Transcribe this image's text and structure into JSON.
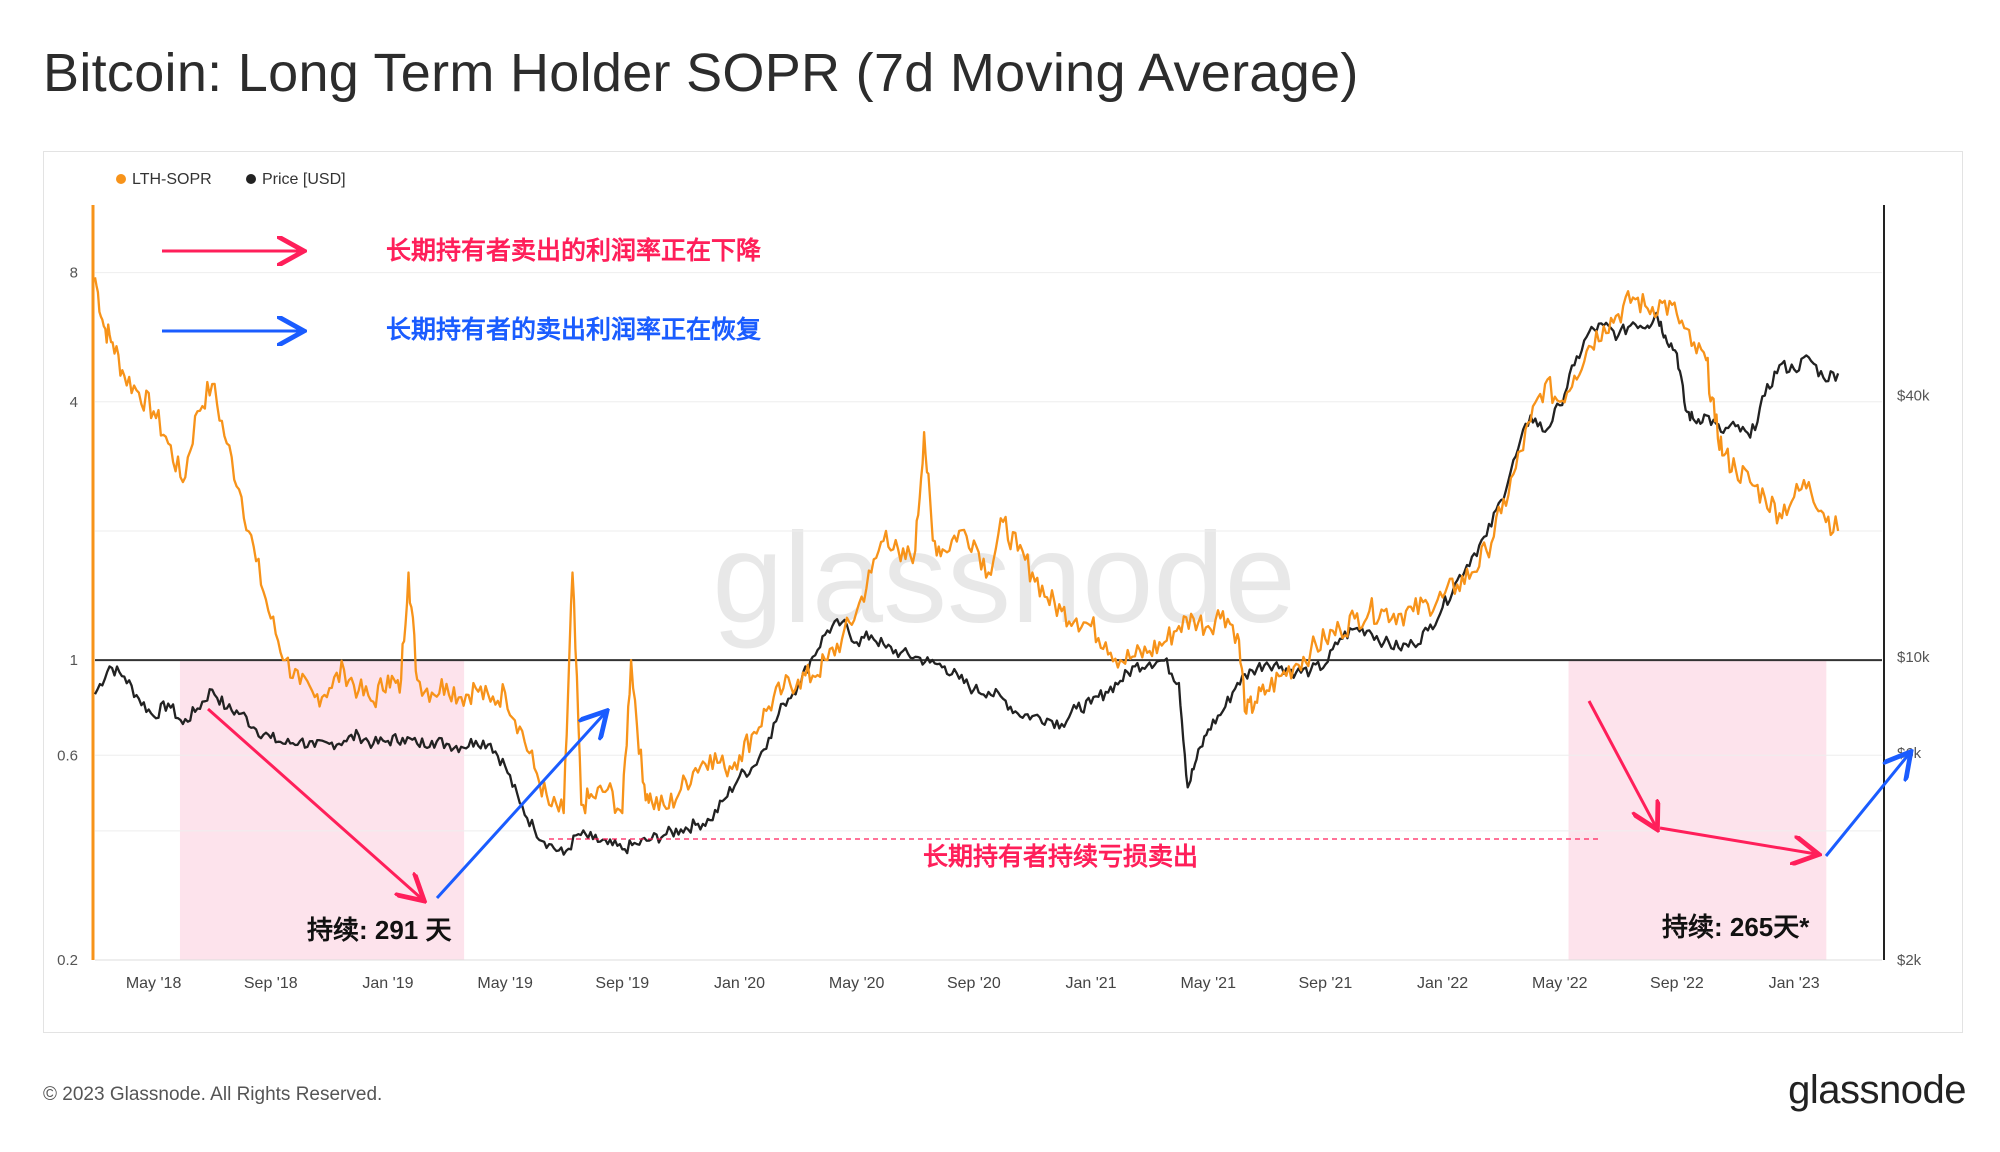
{
  "page": {
    "title": "Bitcoin: Long Term Holder SOPR (7d Moving Average)",
    "footer": "© 2023 Glassnode. All Rights Reserved.",
    "brand": "glassnode",
    "watermark": "glassnode"
  },
  "chart_data": {
    "type": "line",
    "title": "Bitcoin: Long Term Holder SOPR (7d Moving Average)",
    "legend": {
      "position": "top-left",
      "entries": [
        {
          "name": "LTH-SOPR",
          "color": "#f7931a"
        },
        {
          "name": "Price [USD]",
          "color": "#222222"
        }
      ]
    },
    "x_ticks": [
      "May '18",
      "Sep '18",
      "Jan '19",
      "May '19",
      "Sep '19",
      "Jan '20",
      "May '20",
      "Sep '20",
      "Jan '21",
      "May '21",
      "Sep '21",
      "Jan '22",
      "May '22",
      "Sep '22",
      "Jan '23"
    ],
    "x_range": [
      0,
      61
    ],
    "x_unit": "months since Mar 2018",
    "y_left": {
      "label": "LTH-SOPR",
      "scale": "log",
      "range": [
        0.2,
        11.5
      ],
      "ticks": [
        "8",
        "4",
        "1",
        "0.6",
        "0.2"
      ]
    },
    "y_right": {
      "label": "Price [USD]",
      "scale": "log",
      "range": [
        2000,
        110000
      ],
      "ticks": [
        "$40k",
        "$10k",
        "$6k",
        "$2k"
      ]
    },
    "reference_line": {
      "axis": "left",
      "value": 1
    },
    "series": [
      {
        "name": "LTH-SOPR",
        "axis": "left",
        "color": "#f7931a",
        "points": [
          [
            0,
            7.8
          ],
          [
            0.3,
            6.0
          ],
          [
            0.6,
            5.5
          ],
          [
            1.0,
            4.6
          ],
          [
            1.5,
            4.2
          ],
          [
            2.0,
            3.8
          ],
          [
            2.5,
            3.2
          ],
          [
            3.0,
            2.6
          ],
          [
            3.5,
            3.8
          ],
          [
            4.0,
            4.4
          ],
          [
            4.5,
            3.2
          ],
          [
            5.0,
            2.4
          ],
          [
            5.5,
            1.7
          ],
          [
            6.0,
            1.25
          ],
          [
            6.5,
            1.0
          ],
          [
            7.0,
            0.88
          ],
          [
            7.5,
            0.82
          ],
          [
            8.0,
            0.86
          ],
          [
            8.5,
            0.95
          ],
          [
            9.0,
            0.85
          ],
          [
            9.5,
            0.8
          ],
          [
            10.0,
            0.92
          ],
          [
            10.4,
            0.84
          ],
          [
            10.7,
            1.6
          ],
          [
            11.0,
            0.9
          ],
          [
            11.5,
            0.84
          ],
          [
            12.0,
            0.88
          ],
          [
            12.5,
            0.82
          ],
          [
            13.0,
            0.86
          ],
          [
            13.5,
            0.8
          ],
          [
            14.0,
            0.84
          ],
          [
            14.5,
            0.7
          ],
          [
            15.0,
            0.56
          ],
          [
            15.5,
            0.46
          ],
          [
            16.0,
            0.44
          ],
          [
            16.3,
            1.6
          ],
          [
            16.6,
            0.46
          ],
          [
            17.0,
            0.48
          ],
          [
            17.5,
            0.5
          ],
          [
            18.0,
            0.44
          ],
          [
            18.3,
            1.0
          ],
          [
            18.7,
            0.52
          ],
          [
            19.0,
            0.47
          ],
          [
            19.5,
            0.45
          ],
          [
            20.0,
            0.5
          ],
          [
            20.5,
            0.56
          ],
          [
            21.0,
            0.6
          ],
          [
            21.5,
            0.56
          ],
          [
            22.0,
            0.6
          ],
          [
            22.5,
            0.68
          ],
          [
            23.0,
            0.78
          ],
          [
            23.5,
            0.86
          ],
          [
            24.0,
            0.9
          ],
          [
            24.5,
            0.92
          ],
          [
            25.0,
            1.0
          ],
          [
            25.5,
            1.12
          ],
          [
            26.0,
            1.3
          ],
          [
            26.5,
            1.6
          ],
          [
            27.0,
            2.0
          ],
          [
            27.5,
            1.7
          ],
          [
            28.0,
            1.8
          ],
          [
            28.3,
            3.4
          ],
          [
            28.6,
            1.9
          ],
          [
            29.0,
            1.8
          ],
          [
            29.5,
            2.0
          ],
          [
            30.0,
            1.9
          ],
          [
            30.5,
            1.6
          ],
          [
            31.0,
            2.1
          ],
          [
            31.5,
            1.8
          ],
          [
            32.0,
            1.6
          ],
          [
            32.5,
            1.4
          ],
          [
            33.0,
            1.3
          ],
          [
            33.5,
            1.25
          ],
          [
            34.0,
            1.2
          ],
          [
            34.5,
            1.1
          ],
          [
            35.0,
            1.0
          ],
          [
            35.5,
            1.02
          ],
          [
            36.0,
            1.05
          ],
          [
            36.5,
            1.1
          ],
          [
            37.0,
            1.2
          ],
          [
            37.5,
            1.25
          ],
          [
            38.0,
            1.2
          ],
          [
            38.5,
            1.3
          ],
          [
            39.0,
            1.15
          ],
          [
            39.3,
            0.75
          ],
          [
            39.6,
            0.8
          ],
          [
            40.0,
            0.85
          ],
          [
            40.5,
            0.92
          ],
          [
            41.0,
            0.98
          ],
          [
            41.5,
            1.05
          ],
          [
            42.0,
            1.12
          ],
          [
            42.5,
            1.18
          ],
          [
            43.0,
            1.25
          ],
          [
            43.5,
            1.3
          ],
          [
            44.0,
            1.3
          ],
          [
            44.5,
            1.28
          ],
          [
            45.0,
            1.3
          ],
          [
            45.5,
            1.35
          ],
          [
            46.0,
            1.4
          ],
          [
            46.5,
            1.5
          ],
          [
            47.0,
            1.6
          ],
          [
            47.5,
            1.8
          ],
          [
            48.0,
            2.2
          ],
          [
            48.5,
            2.8
          ],
          [
            49.0,
            3.6
          ],
          [
            49.5,
            4.4
          ],
          [
            50.0,
            4.0
          ],
          [
            50.5,
            4.6
          ],
          [
            51.0,
            5.4
          ],
          [
            51.5,
            6.0
          ],
          [
            52.0,
            6.4
          ],
          [
            52.5,
            7.0
          ],
          [
            53.0,
            6.6
          ],
          [
            53.5,
            6.8
          ],
          [
            54.0,
            6.4
          ],
          [
            54.5,
            5.4
          ],
          [
            55.0,
            5.0
          ],
          [
            55.3,
            3.6
          ],
          [
            55.6,
            3.0
          ],
          [
            56.0,
            2.8
          ],
          [
            56.5,
            2.6
          ],
          [
            57.0,
            2.4
          ],
          [
            57.5,
            2.2
          ],
          [
            58.0,
            2.4
          ],
          [
            58.5,
            2.6
          ],
          [
            59.0,
            2.2
          ],
          [
            59.5,
            2.0
          ]
        ]
      },
      {
        "name": "Price [USD]",
        "axis": "right",
        "color": "#222222",
        "points": [
          [
            0,
            8200
          ],
          [
            0.5,
            9500
          ],
          [
            1.0,
            9000
          ],
          [
            1.5,
            8000
          ],
          [
            2.0,
            7300
          ],
          [
            2.5,
            7800
          ],
          [
            3.0,
            7000
          ],
          [
            3.5,
            7600
          ],
          [
            4.0,
            8400
          ],
          [
            4.5,
            7600
          ],
          [
            5.0,
            7400
          ],
          [
            5.5,
            6800
          ],
          [
            6.0,
            6500
          ],
          [
            6.5,
            6300
          ],
          [
            7.0,
            6400
          ],
          [
            7.5,
            6200
          ],
          [
            8.0,
            6300
          ],
          [
            8.5,
            6400
          ],
          [
            9.0,
            6600
          ],
          [
            9.5,
            6300
          ],
          [
            10.0,
            6400
          ],
          [
            10.5,
            6500
          ],
          [
            11.0,
            6300
          ],
          [
            11.5,
            6400
          ],
          [
            12.0,
            6300
          ],
          [
            12.5,
            6200
          ],
          [
            13.0,
            6400
          ],
          [
            13.5,
            6300
          ],
          [
            14.0,
            5600
          ],
          [
            14.5,
            4600
          ],
          [
            15.0,
            4000
          ],
          [
            15.5,
            3700
          ],
          [
            16.0,
            3500
          ],
          [
            16.5,
            3900
          ],
          [
            17.0,
            3800
          ],
          [
            17.5,
            3700
          ],
          [
            18.0,
            3600
          ],
          [
            18.5,
            3700
          ],
          [
            19.0,
            3800
          ],
          [
            19.5,
            3900
          ],
          [
            20.0,
            4000
          ],
          [
            20.5,
            4100
          ],
          [
            21.0,
            4200
          ],
          [
            21.5,
            4700
          ],
          [
            22.0,
            5300
          ],
          [
            22.5,
            5600
          ],
          [
            23.0,
            6500
          ],
          [
            23.5,
            7800
          ],
          [
            24.0,
            8600
          ],
          [
            24.5,
            10000
          ],
          [
            25.0,
            11500
          ],
          [
            25.5,
            12000
          ],
          [
            26.0,
            10800
          ],
          [
            26.5,
            11200
          ],
          [
            27.0,
            10500
          ],
          [
            27.5,
            10200
          ],
          [
            28.0,
            10000
          ],
          [
            28.5,
            9700
          ],
          [
            29.0,
            9500
          ],
          [
            29.5,
            8900
          ],
          [
            30.0,
            8400
          ],
          [
            30.5,
            8300
          ],
          [
            31.0,
            8000
          ],
          [
            31.5,
            7400
          ],
          [
            32.0,
            7300
          ],
          [
            32.5,
            7200
          ],
          [
            33.0,
            7000
          ],
          [
            33.5,
            7600
          ],
          [
            34.0,
            7800
          ],
          [
            34.5,
            8300
          ],
          [
            35.0,
            8800
          ],
          [
            35.5,
            9500
          ],
          [
            36.0,
            9700
          ],
          [
            36.5,
            9800
          ],
          [
            37.0,
            8700
          ],
          [
            37.3,
            5000
          ],
          [
            37.6,
            5800
          ],
          [
            38.0,
            6800
          ],
          [
            38.5,
            7500
          ],
          [
            39.0,
            8700
          ],
          [
            39.5,
            9300
          ],
          [
            40.0,
            9700
          ],
          [
            40.5,
            9500
          ],
          [
            41.0,
            9200
          ],
          [
            41.5,
            9300
          ],
          [
            42.0,
            9600
          ],
          [
            42.5,
            11000
          ],
          [
            43.0,
            11600
          ],
          [
            43.5,
            11500
          ],
          [
            44.0,
            10800
          ],
          [
            44.5,
            10500
          ],
          [
            45.0,
            10700
          ],
          [
            45.5,
            11500
          ],
          [
            46.0,
            13000
          ],
          [
            46.5,
            15000
          ],
          [
            47.0,
            17000
          ],
          [
            47.5,
            19000
          ],
          [
            48.0,
            23000
          ],
          [
            48.5,
            29000
          ],
          [
            49.0,
            36000
          ],
          [
            49.5,
            33000
          ],
          [
            50.0,
            38000
          ],
          [
            50.5,
            47000
          ],
          [
            51.0,
            56000
          ],
          [
            51.5,
            58000
          ],
          [
            52.0,
            55000
          ],
          [
            52.5,
            59000
          ],
          [
            53.0,
            58000
          ],
          [
            53.3,
            62000
          ],
          [
            53.6,
            55000
          ],
          [
            54.0,
            50000
          ],
          [
            54.3,
            37000
          ],
          [
            54.6,
            35000
          ],
          [
            55.0,
            36000
          ],
          [
            55.5,
            33000
          ],
          [
            56.0,
            34000
          ],
          [
            56.5,
            32000
          ],
          [
            57.0,
            40000
          ],
          [
            57.5,
            47000
          ],
          [
            58.0,
            46000
          ],
          [
            58.5,
            49000
          ],
          [
            59.0,
            44000
          ],
          [
            59.5,
            45000
          ]
        ]
      }
    ],
    "annotations": [
      {
        "text": "长期持有者卖出的利润率正在下降",
        "color": "#ff1f5a"
      },
      {
        "text": "长期持有者的卖出利润率正在恢复",
        "color": "#1a5cff"
      },
      {
        "text": "长期持有者持续亏损卖出",
        "color": "#ff1f5a"
      },
      {
        "text": "持续: 291 天",
        "color": "#111111"
      },
      {
        "text": "持续: 265天*",
        "color": "#111111"
      }
    ],
    "shaded_periods": [
      {
        "label": "持续: 291 天",
        "from": 2.9,
        "to": 12.6
      },
      {
        "label": "持续: 265天*",
        "from": 50.3,
        "to": 59.1
      }
    ]
  }
}
